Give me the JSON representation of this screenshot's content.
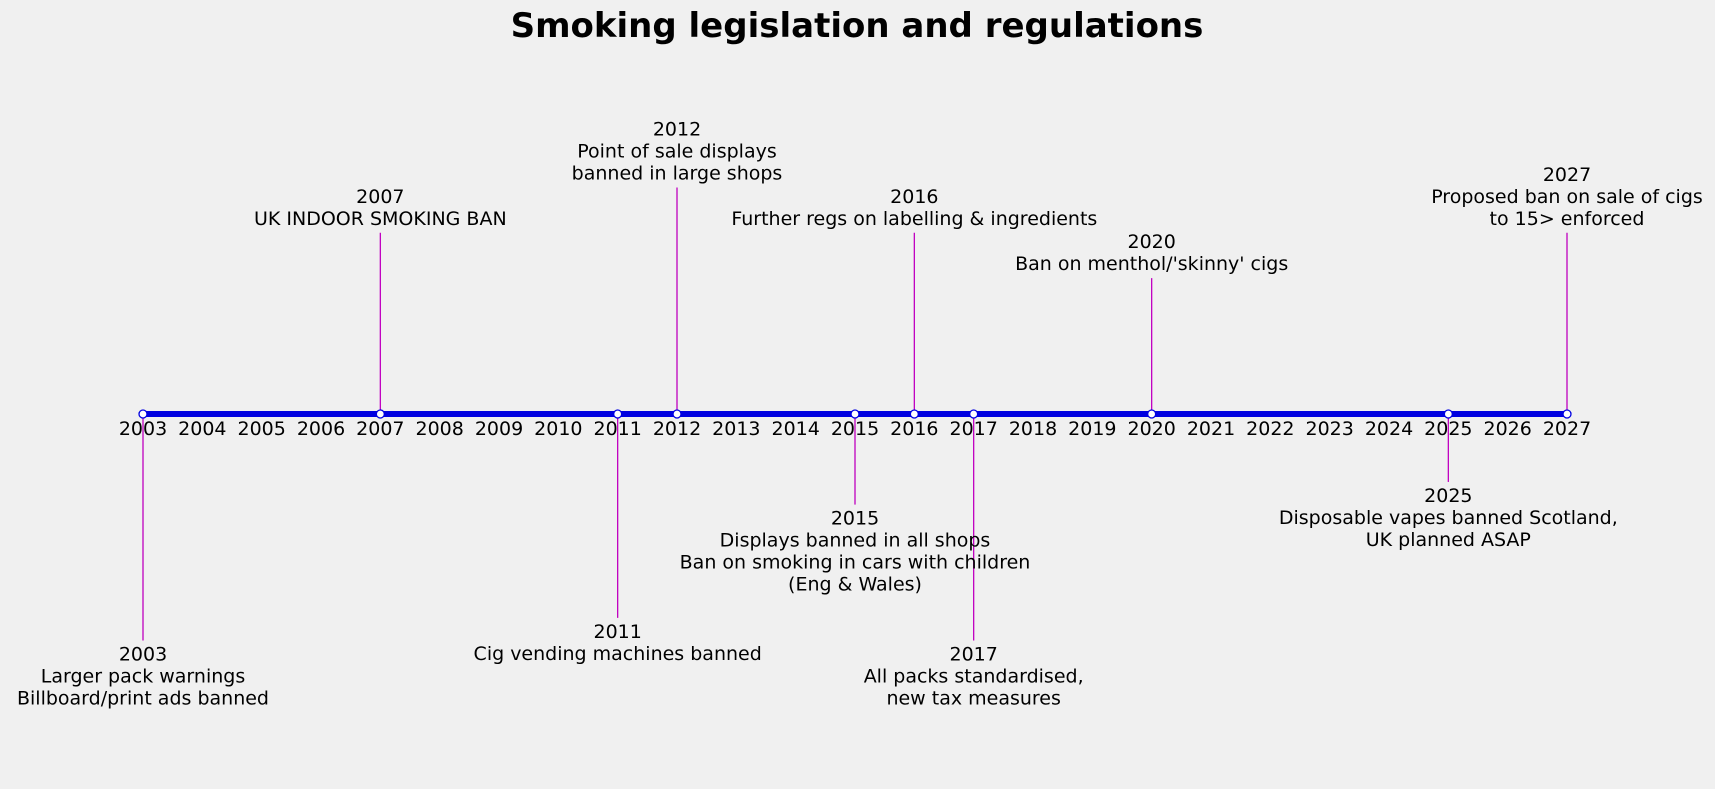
{
  "chart_data": {
    "type": "timeline",
    "title": "Smoking legislation and regulations",
    "x_range": [
      2003,
      2027
    ],
    "grid": false,
    "colors": {
      "axis_line": "#0000e0",
      "stem": "#c000c0",
      "marker_fill": "#ffffff",
      "marker_edge": "#0000e0"
    },
    "ticks": [
      "2003",
      "2004",
      "2005",
      "2006",
      "2007",
      "2008",
      "2009",
      "2010",
      "2011",
      "2012",
      "2013",
      "2014",
      "2015",
      "2016",
      "2017",
      "2018",
      "2019",
      "2020",
      "2021",
      "2022",
      "2023",
      "2024",
      "2025",
      "2026",
      "2027"
    ],
    "events": [
      {
        "year": 2003,
        "level": -5.0,
        "lines": [
          "2003",
          "Larger pack warnings",
          "Billboard/print ads banned"
        ]
      },
      {
        "year": 2007,
        "level": 4.0,
        "lines": [
          "2007",
          "UK INDOOR SMOKING BAN"
        ]
      },
      {
        "year": 2011,
        "level": -4.5,
        "lines": [
          "2011",
          "Cig vending machines banned"
        ]
      },
      {
        "year": 2012,
        "level": 5.0,
        "lines": [
          "2012",
          "Point of sale displays",
          "banned in large shops"
        ]
      },
      {
        "year": 2015,
        "level": -2.0,
        "lines": [
          "2015",
          "Displays banned in all shops",
          "Ban on smoking in cars with children",
          "(Eng & Wales)"
        ]
      },
      {
        "year": 2016,
        "level": 4.0,
        "lines": [
          "2016",
          "Further regs on labelling & ingredients"
        ]
      },
      {
        "year": 2017,
        "level": -5.0,
        "lines": [
          "2017",
          "All packs standardised,",
          "new tax measures"
        ]
      },
      {
        "year": 2020,
        "level": 3.0,
        "lines": [
          "2020",
          "Ban on menthol/'skinny' cigs"
        ]
      },
      {
        "year": 2025,
        "level": -1.5,
        "lines": [
          "2025",
          "Disposable vapes banned Scotland,",
          "UK planned ASAP"
        ]
      },
      {
        "year": 2027,
        "level": 4.0,
        "lines": [
          "2027",
          "Proposed ban on sale of cigs",
          "to 15> enforced"
        ]
      }
    ]
  }
}
